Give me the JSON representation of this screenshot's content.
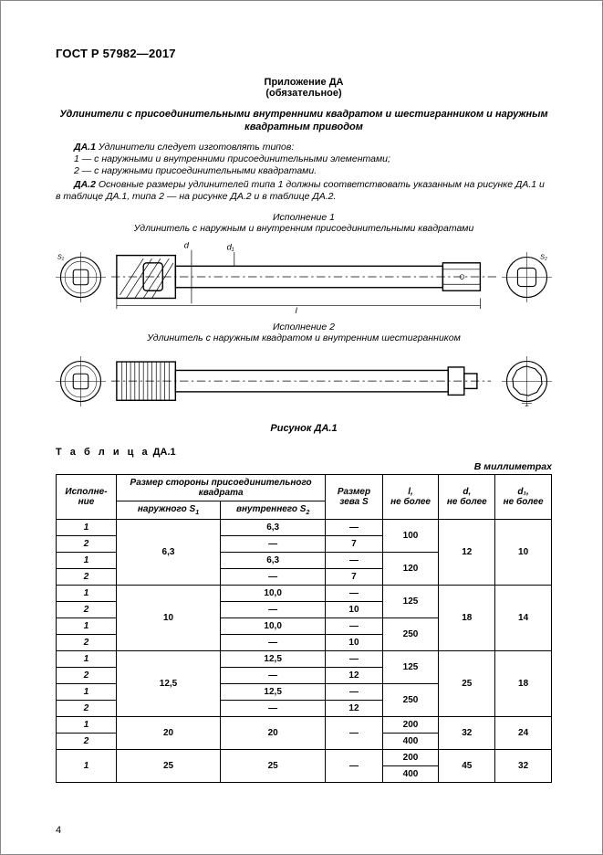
{
  "gost": "ГОСТ Р 57982—2017",
  "appendix": {
    "title": "Приложение ДА",
    "type": "(обязательное)"
  },
  "main_title": "Удлинители с присоединительными внутренними квадратом и шестигранником и наружным квадратным приводом",
  "p_da1_lead": "ДА.1",
  "p_da1": " Удлинители следует изготовлять типов:",
  "p_da1_a": "1 — с наружными и внутренними присоединительными элементами;",
  "p_da1_b": "2 — с наружными присоединительными квадратами.",
  "p_da2_lead": "ДА.2",
  "p_da2": " Основные размеры удлинителей типа 1 должны соответствовать указанным на рисунке ДА.1 и в таблице ДА.1, типа 2 — на рисунке ДА.2 и в таблице ДА.2.",
  "fig1": {
    "exec": "Исполнение 1",
    "desc": "Удлинитель с наружным и внутренним присоединительными квадратами"
  },
  "fig2": {
    "exec": "Исполнение 2",
    "desc": "Удлинитель с наружным квадратом и внутренним шестигранником"
  },
  "figlabel": "Рисунок ДА.1",
  "tablelabel_prefix": "Т а б л и ц а",
  "tablelabel": "  ДА.1",
  "units": "В миллиметрах",
  "headers": {
    "exec": "Исполне-\nние",
    "sq": "Размер стороны присоединительного квадрата",
    "s1": "наружного S",
    "s2": "внутреннего S",
    "s": "Размер зева S",
    "l": "l,\nне более",
    "d": "d,\nне более",
    "d1": "d₁,\nне более"
  },
  "sym": {
    "S1": "S₁",
    "S2": "S₂",
    "d": "d",
    "d1": "d₁",
    "l": "l",
    "S": "S"
  },
  "groups": [
    {
      "s1": "6,3",
      "d": "12",
      "d1": "10",
      "rows": [
        {
          "exec": "1",
          "s2": "6,3",
          "s": "—",
          "lgroup": "100"
        },
        {
          "exec": "2",
          "s2": "—",
          "s": "7"
        },
        {
          "exec": "1",
          "s2": "6,3",
          "s": "—",
          "lgroup": "120"
        },
        {
          "exec": "2",
          "s2": "—",
          "s": "7"
        }
      ]
    },
    {
      "s1": "10",
      "d": "18",
      "d1": "14",
      "rows": [
        {
          "exec": "1",
          "s2": "10,0",
          "s": "—",
          "lgroup": "125"
        },
        {
          "exec": "2",
          "s2": "—",
          "s": "10"
        },
        {
          "exec": "1",
          "s2": "10,0",
          "s": "—",
          "lgroup": "250"
        },
        {
          "exec": "2",
          "s2": "—",
          "s": "10"
        }
      ]
    },
    {
      "s1": "12,5",
      "d": "25",
      "d1": "18",
      "rows": [
        {
          "exec": "1",
          "s2": "12,5",
          "s": "—",
          "lgroup": "125"
        },
        {
          "exec": "2",
          "s2": "—",
          "s": "12"
        },
        {
          "exec": "1",
          "s2": "12,5",
          "s": "—",
          "lgroup": "250"
        },
        {
          "exec": "2",
          "s2": "—",
          "s": "12"
        }
      ]
    },
    {
      "s1": "20",
      "d": "32",
      "d1": "24",
      "rows": [
        {
          "exec": "1",
          "s2": "20",
          "s": "—",
          "lgroup": "200",
          "lrowspan": 1
        },
        {
          "exec": "2",
          "s2": "",
          "s": "",
          "lgroup": "400",
          "lrowspan": 1,
          "merge_s2": true
        }
      ]
    },
    {
      "s1": "25",
      "d": "45",
      "d1": "32",
      "rows": [
        {
          "exec": "1",
          "s2": "25",
          "s": "—",
          "lgroup": "200",
          "lrowspan": 1,
          "exec_rowspan": 2
        },
        {
          "lgroup": "400",
          "lrowspan": 1,
          "only_l": true
        }
      ]
    }
  ],
  "pagenum": "4"
}
